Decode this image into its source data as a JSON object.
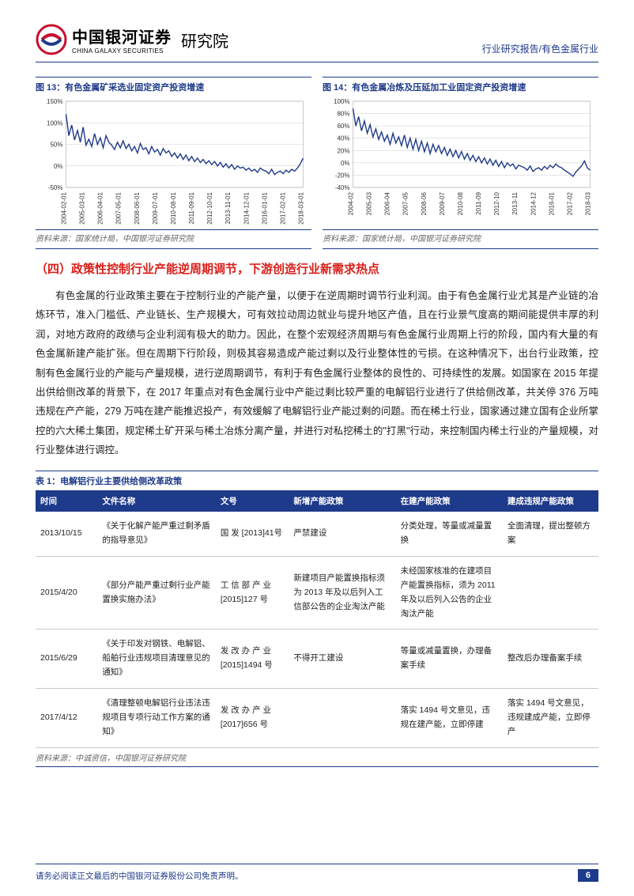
{
  "header": {
    "logo_cn": "中国银河证券",
    "logo_en": "CHINA GALAXY SECURITIES",
    "logo_suffix": "研究院",
    "right": "行业研究报告/有色金属行业"
  },
  "chart_left": {
    "title": "图 13：有色金属矿采选业固定资产投资增速",
    "source": "资料来源：国家统计局，中国银河证券研究院",
    "ylim": [
      -50,
      150
    ],
    "ytick_step": 50,
    "yticks": [
      "-50%",
      "0%",
      "50%",
      "100%",
      "150%"
    ],
    "xticks": [
      "2004-02-01",
      "2005-03-01",
      "2006-04-01",
      "2007-05-01",
      "2008-06-01",
      "2009-07-01",
      "2010-08-01",
      "2011-09-01",
      "2012-10-01",
      "2013-11-01",
      "2014-12-01",
      "2016-01-01",
      "2017-02-01",
      "2018-03-01"
    ],
    "line_color": "#1e3a8a",
    "grid_color": "#cccccc",
    "background_color": "#ffffff",
    "values": [
      120,
      70,
      95,
      60,
      82,
      55,
      90,
      48,
      62,
      45,
      75,
      50,
      65,
      42,
      70,
      55,
      48,
      38,
      55,
      42,
      58,
      40,
      50,
      35,
      45,
      30,
      52,
      38,
      42,
      28,
      45,
      32,
      38,
      25,
      40,
      30,
      35,
      22,
      30,
      18,
      28,
      15,
      25,
      12,
      22,
      10,
      18,
      8,
      15,
      5,
      12,
      3,
      10,
      0,
      8,
      -3,
      5,
      -5,
      3,
      -8,
      0,
      -5,
      -3,
      -10,
      -5,
      -12,
      -8,
      -15,
      -5,
      -10,
      -12,
      -18,
      -8,
      -20,
      -15,
      -12,
      -18,
      -10,
      -15,
      -8,
      -12,
      -5,
      5,
      18
    ]
  },
  "chart_right": {
    "title": "图 14：有色金属冶炼及压延加工业固定资产投资增速",
    "source": "资料来源：国家统计局，中国银河证券研究院",
    "ylim": [
      -40,
      100
    ],
    "ytick_step": 20,
    "yticks": [
      "-40%",
      "-20%",
      "0%",
      "20%",
      "40%",
      "60%",
      "80%",
      "100%"
    ],
    "xticks": [
      "2004-02",
      "2005-03",
      "2006-04",
      "2007-05",
      "2008-06",
      "2009-07",
      "2010-08",
      "2011-09",
      "2012-10",
      "2013-11",
      "2014-12",
      "2016-01",
      "2017-02",
      "2018-03"
    ],
    "line_color": "#1e3a8a",
    "grid_color": "#cccccc",
    "background_color": "#ffffff",
    "values": [
      88,
      60,
      75,
      52,
      68,
      48,
      62,
      42,
      55,
      38,
      50,
      35,
      45,
      30,
      48,
      32,
      42,
      28,
      45,
      25,
      40,
      22,
      38,
      20,
      35,
      18,
      32,
      15,
      30,
      18,
      28,
      15,
      25,
      12,
      22,
      10,
      20,
      8,
      18,
      6,
      15,
      4,
      12,
      2,
      10,
      0,
      8,
      -2,
      6,
      -4,
      4,
      -6,
      2,
      -8,
      0,
      -5,
      -2,
      -10,
      -4,
      -6,
      -8,
      -12,
      -5,
      -14,
      -10,
      -8,
      -12,
      -6,
      -10,
      -4,
      -8,
      -2,
      -6,
      -8,
      -12,
      -15,
      -18,
      -22,
      -15,
      -10,
      -5,
      3,
      -8,
      -12
    ]
  },
  "section_heading": "（四）政策性控制行业产能逆周期调节，下游创造行业新需求热点",
  "body": "有色金属的行业政策主要在于控制行业的产能产量，以便于在逆周期时调节行业利润。由于有色金属行业尤其是产业链的冶炼环节，准入门槛低、产业链长、生产规模大，可有效拉动周边就业与提升地区产值，且在行业景气度高的期间能提供丰厚的利润，对地方政府的政绩与企业利润有极大的助力。因此，在整个宏观经济周期与有色金属行业周期上行的阶段，国内有大量的有色金属新建产能扩张。但在周期下行阶段，则极其容易造成产能过剩以及行业整体性的亏损。在这种情况下，出台行业政策，控制有色金属行业的产能与产量规模，进行逆周期调节，有利于有色金属行业整体的良性的、可持续性的发展。如国家在 2015 年提出供给侧改革的背景下，在 2017 年重点对有色金属行业中产能过剩比较严重的电解铝行业进行了供给侧改革，共关停 376 万吨违规在产产能，279 万吨在建产能推迟投产，有效缓解了电解铝行业产能过剩的问题。而在稀土行业，国家通过建立国有企业所掌控的六大稀土集团，规定稀土矿开采与稀土冶炼分离产量，并进行对私挖稀土的\"打黑\"行动，来控制国内稀土行业的产量规模，对行业整体进行调控。",
  "table": {
    "title": "表 1：电解铝行业主要供给侧改革政策",
    "headers": [
      "时间",
      "文件名称",
      "文号",
      "新增产能政策",
      "在建产能政策",
      "建成违规产能政策"
    ],
    "rows": [
      [
        "2013/10/15",
        "《关于化解产能严重过剩矛盾的指导意见》",
        "国 发 [2013]41号",
        "严禁建设",
        "分类处理，等量或减量置换",
        "全面清理，提出整顿方案"
      ],
      [
        "2015/4/20",
        "《部分产能严重过剩行业产能置换实施办法》",
        "工 信 部 产 业[2015]127 号",
        "新建项目产能置换指标须为 2013 年及以后列入工信部公告的企业淘汰产能",
        "未经国家核准的在建项目产能置换指标，须为 2011年及以后列入公告的企业淘汰产能",
        ""
      ],
      [
        "2015/6/29",
        "《关于印发对钢铁、电解铝、船舶行业违规项目清理意见的通知》",
        "发 改 办 产 业[2015]1494 号",
        "不得开工建设",
        "等量或减量置换，办理备案手续",
        "整改后办理备案手续"
      ],
      [
        "2017/4/12",
        "《清理整顿电解铝行业违法违规项目专项行动工作方案的通知》",
        "发 改 办 产 业[2017]656 号",
        "",
        "落实 1494 号文意见，违规在建产能，立即停建",
        "落实 1494 号文意见，违规建成产能，立即停产"
      ]
    ],
    "source": "资料来源：中诚资信，中国银河证券研究院"
  },
  "footer": {
    "disclaimer": "请务必阅读正文最后的中国银河证券股份公司免责声明。",
    "page": "6"
  },
  "colors": {
    "brand_blue": "#1e3a8a",
    "brand_red": "#d91e18",
    "logo_red": "#c8102e"
  }
}
